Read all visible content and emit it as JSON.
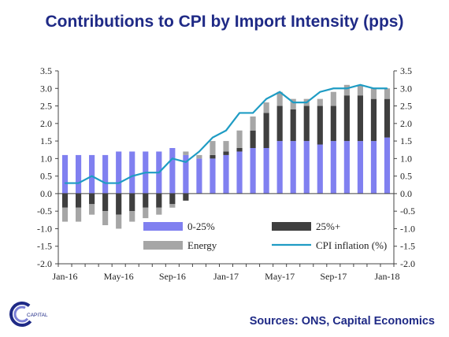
{
  "chart_data": {
    "type": "bar",
    "title": "Contributions to CPI by Import Intensity (pps)",
    "categories": [
      "Jan-16",
      "Feb-16",
      "Mar-16",
      "Apr-16",
      "May-16",
      "Jun-16",
      "Jul-16",
      "Aug-16",
      "Sep-16",
      "Oct-16",
      "Nov-16",
      "Dec-16",
      "Jan-17",
      "Feb-17",
      "Mar-17",
      "Apr-17",
      "May-17",
      "Jun-17",
      "Jul-17",
      "Aug-17",
      "Sep-17",
      "Oct-17",
      "Nov-17",
      "Dec-17",
      "Jan-18"
    ],
    "x_tick_labels": [
      "Jan-16",
      "May-16",
      "Sep-16",
      "Jan-17",
      "May-17",
      "Sep-17",
      "Jan-18"
    ],
    "ylim": [
      -2.0,
      3.5
    ],
    "y_ticks": [
      "-2.0",
      "-1.5",
      "-1.0",
      "-0.5",
      "0.0",
      "0.5",
      "1.0",
      "1.5",
      "2.0",
      "2.5",
      "3.0",
      "3.5"
    ],
    "series": [
      {
        "name": "0-25%",
        "type": "bar",
        "color": "#8080f0",
        "values": [
          1.1,
          1.1,
          1.1,
          1.1,
          1.2,
          1.2,
          1.2,
          1.2,
          1.3,
          1.1,
          1.0,
          1.0,
          1.1,
          1.2,
          1.3,
          1.3,
          1.5,
          1.5,
          1.5,
          1.4,
          1.5,
          1.5,
          1.5,
          1.5,
          1.6
        ]
      },
      {
        "name": "25%+",
        "type": "bar",
        "color": "#3f3f3f",
        "values": [
          -0.4,
          -0.4,
          -0.3,
          -0.5,
          -0.6,
          -0.5,
          -0.4,
          -0.4,
          -0.3,
          -0.2,
          0.0,
          0.1,
          0.1,
          0.1,
          0.5,
          1.0,
          1.0,
          0.9,
          1.0,
          1.1,
          1.0,
          1.3,
          1.3,
          1.2,
          1.1
        ]
      },
      {
        "name": "Energy",
        "type": "bar",
        "color": "#a6a6a6",
        "values": [
          -0.4,
          -0.4,
          -0.3,
          -0.4,
          -0.4,
          -0.3,
          -0.3,
          -0.2,
          -0.1,
          0.1,
          0.1,
          0.4,
          0.3,
          0.5,
          0.4,
          0.3,
          0.4,
          0.3,
          0.2,
          0.2,
          0.4,
          0.3,
          0.3,
          0.3,
          0.3
        ]
      },
      {
        "name": "CPI inflation (%)",
        "type": "line",
        "color": "#1f9cc4",
        "values": [
          0.3,
          0.3,
          0.5,
          0.3,
          0.3,
          0.5,
          0.6,
          0.6,
          1.0,
          0.9,
          1.2,
          1.6,
          1.8,
          2.3,
          2.3,
          2.7,
          2.9,
          2.6,
          2.6,
          2.9,
          3.0,
          3.0,
          3.1,
          3.0,
          3.0
        ]
      }
    ],
    "legend_placement": "bottom-inside",
    "grid": false
  },
  "footer": {
    "sources": "Sources: ONS, Capital Economics",
    "logo_text": "CAPITAL"
  }
}
